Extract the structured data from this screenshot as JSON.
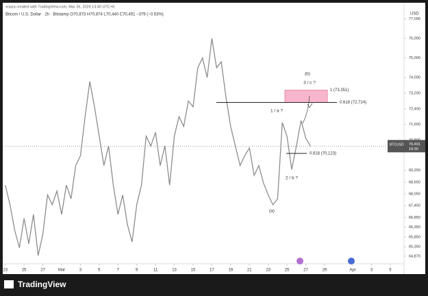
{
  "header": {
    "credit": "xnaza created with TradingView.com, Mar 26, 2026 13:40 UTC+8",
    "symbol_line": "Bitcoin / U.S. Dollar · 2h · Bitstamp  O70,873  H70,874  L70,440  C70,491  −379 (−0.53%)"
  },
  "footer": {
    "brand": "TradingView"
  },
  "chart_data": {
    "type": "line",
    "currency": "USD",
    "symbol": "BTCUSD",
    "time": "19:30",
    "last": {
      "value": 70491,
      "label": "70,491"
    },
    "color": "#8c8c8c",
    "x": [
      0,
      0.5,
      1,
      1.5,
      2,
      2.5,
      3,
      3.5,
      4,
      4.5,
      5,
      5.5,
      6,
      6.5,
      7,
      7.5,
      8,
      8.5,
      9,
      9.5,
      10,
      10.5,
      11,
      11.5,
      12,
      12.5,
      13,
      13.5,
      14,
      14.5,
      15,
      15.5,
      16,
      16.5,
      17,
      17.5,
      18,
      18.5,
      19,
      19.5,
      20,
      20.5,
      21,
      21.5,
      22,
      22.5,
      23,
      23.5,
      24,
      24.5,
      25,
      25.5,
      26,
      26.5,
      27,
      27.5,
      28,
      28.5,
      29,
      29.5,
      30,
      30.5,
      31,
      31.5,
      32,
      32.5
    ],
    "values": [
      68500,
      67500,
      66200,
      65300,
      66800,
      65500,
      67000,
      64900,
      66000,
      68000,
      67500,
      68200,
      67000,
      68500,
      67800,
      69500,
      70000,
      72000,
      73800,
      72500,
      71000,
      69500,
      70500,
      68500,
      67000,
      68000,
      66500,
      65600,
      67500,
      68500,
      71000,
      70500,
      71200,
      69500,
      70500,
      68500,
      71000,
      72000,
      71500,
      72800,
      72500,
      74500,
      75000,
      74000,
      76000,
      74500,
      74800,
      73000,
      71500,
      70500,
      69500,
      70000,
      70400,
      69000,
      69500,
      68600,
      68000,
      67500,
      67800,
      71700,
      71000,
      69300,
      70500,
      71800,
      70900,
      70491
    ],
    "xlim": [
      -0.2,
      42.1
    ],
    "xticks": [
      {
        "value": 0,
        "label": "23"
      },
      {
        "value": 2,
        "label": "25"
      },
      {
        "value": 4,
        "label": "27"
      },
      {
        "value": 6,
        "label": "Mar"
      },
      {
        "value": 8,
        "label": "3"
      },
      {
        "value": 10,
        "label": "5"
      },
      {
        "value": 12,
        "label": "7"
      },
      {
        "value": 14,
        "label": "9"
      },
      {
        "value": 16,
        "label": "11"
      },
      {
        "value": 18,
        "label": "13"
      },
      {
        "value": 20,
        "label": "15"
      },
      {
        "value": 22,
        "label": "17"
      },
      {
        "value": 24,
        "label": "19"
      },
      {
        "value": 26,
        "label": "21"
      },
      {
        "value": 28,
        "label": "23"
      },
      {
        "value": 30,
        "label": "25"
      },
      {
        "value": 32,
        "label": "27"
      },
      {
        "value": 34,
        "label": "29"
      },
      {
        "value": 37,
        "label": "Apr"
      },
      {
        "value": 39,
        "label": "3"
      },
      {
        "value": 41,
        "label": "5"
      }
    ],
    "ylim": [
      64130,
      77680
    ],
    "yticks": [
      {
        "value": 77000,
        "label": "77,000"
      },
      {
        "value": 76000,
        "label": "76,000"
      },
      {
        "value": 75000,
        "label": "75,000"
      },
      {
        "value": 74000,
        "label": "74,000"
      },
      {
        "value": 73200,
        "label": "73,200"
      },
      {
        "value": 72400,
        "label": "72,400"
      },
      {
        "value": 71600,
        "label": "71,600"
      },
      {
        "value": 70800,
        "label": "70,800"
      },
      {
        "value": 69250,
        "label": "69,250"
      },
      {
        "value": 68650,
        "label": "68,650"
      },
      {
        "value": 68050,
        "label": "68,050"
      },
      {
        "value": 67450,
        "label": "67,450"
      },
      {
        "value": 66850,
        "label": "66,850"
      },
      {
        "value": 66350,
        "label": "66,350"
      },
      {
        "value": 65850,
        "label": "65,850"
      },
      {
        "value": 65350,
        "label": "65,350"
      },
      {
        "value": 64870,
        "label": "64,870"
      }
    ],
    "levels": [
      {
        "value": 73351,
        "label": "1 (73,351)"
      },
      {
        "value": 72724,
        "label": "0.618 (72,724)"
      },
      {
        "value": 70123,
        "label": "0.618 (70,123)"
      }
    ],
    "annotations": [
      "(b)",
      "3 / c ?",
      "1 / a ?",
      "2 / b ?",
      "(a)"
    ]
  }
}
